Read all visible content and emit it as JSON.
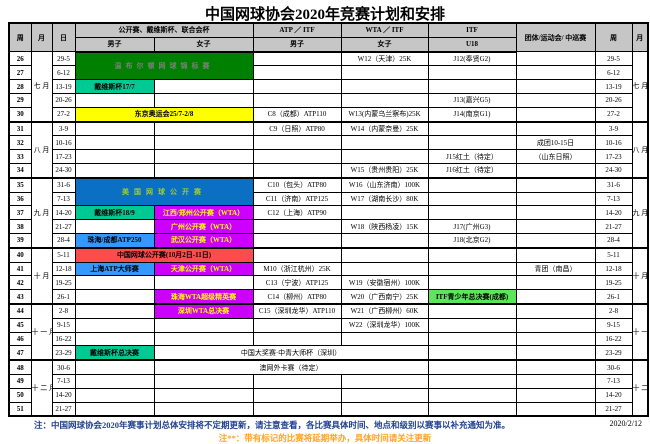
{
  "title": "中国网球协会2020年竞赛计划和安排",
  "header": {
    "week": "周",
    "month": "月",
    "day": "日",
    "open_group": "公开赛、戴维斯杯、联合会杯",
    "men": "男子",
    "women": "女子",
    "atp_itf": "ATP ／ ITF",
    "wta_itf": "WTA ／ ITF",
    "itf": "ITF",
    "u18": "U18",
    "team": "团体/运动会/ 中巡赛",
    "week_right": "周",
    "month_right": "月"
  },
  "colors": {
    "header_bg": "#c6c6c6",
    "green_dark": "#008000",
    "gray_on_green": "#7e7e7e",
    "teal": "#00c993",
    "yellow": "#ffff00",
    "blue_dark": "#0b6fc4",
    "yellowgreen": "#9acd32",
    "magenta": "#cc00ff",
    "blue": "#3399ff",
    "red": "#ff4b4b",
    "green_bright": "#5ce65c",
    "note_blue": "#1f3f8f",
    "note_orange": "#ffa321",
    "black": "#000000"
  },
  "notes": {
    "note1": "注：中国网球协会2020年赛事计划总体安排将不定期更新，请注意查看，各比赛具体时间、地点和级别以赛事以补充通知为准。",
    "date": "2020/2/12",
    "note2": "注**：带有标记的比赛将延期举办，具体时间请关注更新"
  },
  "rows": [
    {
      "cells": [
        {
          "t": "26",
          "cls": "wk"
        },
        {
          "t": "七月",
          "rs": 5,
          "cls": "mo",
          "v": 1
        },
        {
          "t": "29-5",
          "cls": "dt"
        },
        {
          "t": "温布尔顿网球锦标赛",
          "cs": 2,
          "rs": 2,
          "bg": "green_dark",
          "fg": "gray_on_green",
          "cls": "ev mid",
          "n": "event-wimbledon"
        },
        {},
        {
          "t": "W12（天津）25K"
        },
        {
          "t": "J12(奉贤G2)"
        },
        {},
        {
          "t": "29-5",
          "cls": "dtr"
        },
        {
          "t": "七月",
          "rs": 5,
          "cls": "mo",
          "v": 1
        }
      ]
    },
    {
      "cells": [
        {
          "t": "27",
          "cls": "wk"
        },
        {
          "t": "6-12",
          "cls": "dt"
        },
        {},
        {},
        {},
        {},
        {
          "t": "6-12",
          "cls": "dtr"
        }
      ]
    },
    {
      "cells": [
        {
          "t": "28",
          "cls": "wk"
        },
        {
          "t": "13-19",
          "cls": "dt"
        },
        {
          "t": "戴维斯杯17/7",
          "bg": "teal",
          "cls": "ev",
          "n": "event-davis-cup-17-7"
        },
        {},
        {},
        {},
        {},
        {},
        {
          "t": "13-19",
          "cls": "dtr"
        }
      ]
    },
    {
      "cells": [
        {
          "t": "29",
          "cls": "wk"
        },
        {
          "t": "20-26",
          "cls": "dt"
        },
        {},
        {},
        {},
        {},
        {
          "t": "J13(嘉兴G5)"
        },
        {},
        {
          "t": "20-26",
          "cls": "dtr"
        }
      ]
    },
    {
      "cells": [
        {
          "t": "30",
          "cls": "wk"
        },
        {
          "t": "27-2",
          "cls": "dt"
        },
        {
          "t": "东京奥运会25/7-2/8",
          "cs": 2,
          "bg": "yellow",
          "cls": "ev",
          "n": "event-tokyo-olympics"
        },
        {
          "t": "C8（成都）ATP110"
        },
        {
          "t": "W13(内蒙乌兰察布)25K"
        },
        {
          "t": "J14(南京G1)"
        },
        {},
        {
          "t": "27-2",
          "cls": "dtr"
        }
      ]
    },
    {
      "ms": 1,
      "cells": [
        {
          "t": "31",
          "cls": "wk"
        },
        {
          "t": "八月",
          "rs": 4,
          "cls": "mo",
          "v": 1
        },
        {
          "t": "3-9",
          "cls": "dt"
        },
        {},
        {},
        {
          "t": "C9（日照）ATP80"
        },
        {
          "t": "W14（内蒙奈曼）25K"
        },
        {},
        {},
        {
          "t": "3-9",
          "cls": "dtr"
        },
        {
          "t": "八月",
          "rs": 4,
          "cls": "mo",
          "v": 1
        }
      ]
    },
    {
      "cells": [
        {
          "t": "32",
          "cls": "wk"
        },
        {
          "t": "10-16",
          "cls": "dt"
        },
        {},
        {},
        {},
        {},
        {},
        {
          "t": "成团10-15日"
        },
        {
          "t": "10-16",
          "cls": "dtr"
        }
      ]
    },
    {
      "cells": [
        {
          "t": "33",
          "cls": "wk"
        },
        {
          "t": "17-23",
          "cls": "dt"
        },
        {},
        {},
        {},
        {},
        {
          "t": "J15红土（待定）"
        },
        {
          "t": "（山东日照）"
        },
        {
          "t": "17-23",
          "cls": "dtr"
        }
      ]
    },
    {
      "cells": [
        {
          "t": "34",
          "cls": "wk"
        },
        {
          "t": "24-30",
          "cls": "dt"
        },
        {},
        {},
        {},
        {
          "t": "W15（贵州贵阳）25K"
        },
        {
          "t": "J16红土（待定）"
        },
        {},
        {
          "t": "24-30",
          "cls": "dtr"
        }
      ]
    },
    {
      "ms": 1,
      "cells": [
        {
          "t": "35",
          "cls": "wk"
        },
        {
          "t": "九月",
          "rs": 5,
          "cls": "mo",
          "v": 1
        },
        {
          "t": "31-6",
          "cls": "dt"
        },
        {
          "t": "美国网球公开赛",
          "cs": 2,
          "rs": 2,
          "bg": "blue_dark",
          "fg": "yellowgreen",
          "cls": "ev big",
          "n": "event-us-open"
        },
        {
          "t": "C10（包头）ATP80"
        },
        {
          "t": "W16（山东济南）100K"
        },
        {},
        {},
        {
          "t": "31-6",
          "cls": "dtr"
        },
        {
          "t": "九月",
          "rs": 5,
          "cls": "mo",
          "v": 1
        }
      ]
    },
    {
      "cells": [
        {
          "t": "36",
          "cls": "wk"
        },
        {
          "t": "7-13",
          "cls": "dt"
        },
        {
          "t": "C11（济南）ATP125"
        },
        {
          "t": "W17（湖南长沙）80K"
        },
        {},
        {},
        {
          "t": "7-13",
          "cls": "dtr"
        }
      ]
    },
    {
      "cells": [
        {
          "t": "37",
          "cls": "wk"
        },
        {
          "t": "14-20",
          "cls": "dt"
        },
        {
          "t": "戴维斯杯18/9",
          "bg": "teal",
          "cls": "ev",
          "n": "event-davis-cup-18-9"
        },
        {
          "t": "江西/郑州公开赛（WTA）",
          "bg": "magenta",
          "fg": "yellow",
          "cls": "ev",
          "n": "event-jiangxi-zhengzhou-open"
        },
        {
          "t": "C12（上海）ATP90"
        },
        {},
        {},
        {},
        {
          "t": "14-20",
          "cls": "dtr"
        }
      ]
    },
    {
      "cells": [
        {
          "t": "38",
          "cls": "wk"
        },
        {
          "t": "21-27",
          "cls": "dt"
        },
        {},
        {
          "t": "广州公开赛（WTA）",
          "bg": "magenta",
          "fg": "yellow",
          "cls": "ev",
          "n": "event-guangzhou-open"
        },
        {},
        {
          "t": "W18（陕西杨凌）15K"
        },
        {
          "t": "J17(广州G3)"
        },
        {},
        {
          "t": "21-27",
          "cls": "dtr"
        }
      ]
    },
    {
      "cells": [
        {
          "t": "39",
          "cls": "wk"
        },
        {
          "t": "28-4",
          "cls": "dt"
        },
        {
          "t": "珠海/成都ATP250",
          "bg": "blue",
          "cls": "ev",
          "n": "event-zhuhai-chengdu-atp250"
        },
        {
          "t": "武汉公开赛（WTA）",
          "bg": "magenta",
          "fg": "yellow",
          "cls": "ev",
          "n": "event-wuhan-open"
        },
        {},
        {},
        {
          "t": "J18(北京G2)"
        },
        {},
        {
          "t": "28-4",
          "cls": "dtr"
        }
      ]
    },
    {
      "ms": 1,
      "cells": [
        {
          "t": "40",
          "cls": "wk"
        },
        {
          "t": "十月",
          "rs": 4,
          "cls": "mo",
          "v": 1
        },
        {
          "t": "5-11",
          "cls": "dt"
        },
        {
          "t": "中国网球公开赛(10月2日-11日)",
          "cs": 2,
          "bg": "red",
          "cls": "ev",
          "n": "event-china-open"
        },
        {},
        {},
        {},
        {},
        {
          "t": "5-11",
          "cls": "dtr"
        },
        {
          "t": "十月",
          "rs": 4,
          "cls": "mo",
          "v": 1
        }
      ]
    },
    {
      "cells": [
        {
          "t": "41",
          "cls": "wk"
        },
        {
          "t": "12-18",
          "cls": "dt"
        },
        {
          "t": "上海ATP大师赛",
          "bg": "blue",
          "cls": "ev",
          "n": "event-shanghai-masters"
        },
        {
          "t": "天津公开赛（WTA）",
          "bg": "magenta",
          "fg": "yellow",
          "cls": "ev",
          "n": "event-tianjin-open"
        },
        {
          "t": "M10（浙江杭州）25K"
        },
        {},
        {},
        {
          "t": "青团（南昌）"
        },
        {
          "t": "12-18",
          "cls": "dtr"
        }
      ]
    },
    {
      "cells": [
        {
          "t": "42",
          "cls": "wk"
        },
        {
          "t": "19-25",
          "cls": "dt"
        },
        {},
        {},
        {
          "t": "C13（宁波）ATP125"
        },
        {
          "t": "W19（安徽宿州）100K"
        },
        {},
        {},
        {
          "t": "19-25",
          "cls": "dtr"
        }
      ]
    },
    {
      "cells": [
        {
          "t": "43",
          "cls": "wk"
        },
        {
          "t": "26-1",
          "cls": "dt"
        },
        {},
        {
          "t": "珠海WTA超级精英赛",
          "bg": "magenta",
          "fg": "yellow",
          "cls": "ev",
          "n": "event-zhuhai-wta-elite"
        },
        {
          "t": "C14（柳州）ATP80"
        },
        {
          "t": "W20（广西南宁）25K"
        },
        {
          "t": "ITF青少年总决赛(成都)",
          "bg": "green_bright",
          "cls": "ev",
          "n": "event-itf-junior-finals"
        },
        {},
        {
          "t": "26-1",
          "cls": "dtr"
        }
      ]
    },
    {
      "ms": 1,
      "cells": [
        {
          "t": "44",
          "cls": "wk"
        },
        {
          "t": "十一月",
          "rs": 4,
          "cls": "mo",
          "v": 1
        },
        {
          "t": "2-8",
          "cls": "dt"
        },
        {},
        {
          "t": "深圳WTA总决赛",
          "bg": "magenta",
          "fg": "yellow",
          "cls": "ev",
          "n": "event-shenzhen-wta-finals"
        },
        {
          "t": "C15（深圳龙华）ATP110"
        },
        {
          "t": "W21（广西柳州）60K"
        },
        {},
        {},
        {
          "t": "2-8",
          "cls": "dtr"
        },
        {
          "t": "十一月",
          "rs": 4,
          "cls": "mo",
          "v": 1
        }
      ]
    },
    {
      "cells": [
        {
          "t": "45",
          "cls": "wk"
        },
        {
          "t": "9-15",
          "cls": "dt"
        },
        {},
        {},
        {},
        {
          "t": "W22（深圳龙华）100K"
        },
        {},
        {},
        {
          "t": "9-15",
          "cls": "dtr"
        }
      ]
    },
    {
      "cells": [
        {
          "t": "46",
          "cls": "wk"
        },
        {
          "t": "16-22",
          "cls": "dt"
        },
        {},
        {},
        {},
        {},
        {},
        {},
        {
          "t": "16-22",
          "cls": "dtr"
        }
      ]
    },
    {
      "cells": [
        {
          "t": "47",
          "cls": "wk"
        },
        {
          "t": "23-29",
          "cls": "dt"
        },
        {
          "t": "戴维斯杯总决赛",
          "bg": "teal",
          "cls": "ev",
          "n": "event-davis-cup-finals"
        },
        {
          "t": "中国大奖赛·中青大师杯（深圳）",
          "cs": 3,
          "n": "event-china-grand-prix"
        },
        {},
        {},
        {
          "t": "23-29",
          "cls": "dtr"
        }
      ]
    },
    {
      "ms": 1,
      "cells": [
        {
          "t": "48",
          "cls": "wk"
        },
        {
          "t": "十二月",
          "rs": 4,
          "cls": "mo",
          "v": 1
        },
        {
          "t": "30-6",
          "cls": "dt"
        },
        {},
        {
          "t": "澳网外卡赛（待定）",
          "cs": 3,
          "n": "event-ao-wildcard"
        },
        {},
        {},
        {
          "t": "30-6",
          "cls": "dtr"
        },
        {
          "t": "十二月",
          "rs": 4,
          "cls": "mo",
          "v": 1
        }
      ]
    },
    {
      "cells": [
        {
          "t": "49",
          "cls": "wk"
        },
        {
          "t": "7-13",
          "cls": "dt"
        },
        {},
        {},
        {},
        {},
        {},
        {},
        {
          "t": "7-13",
          "cls": "dtr"
        }
      ]
    },
    {
      "cells": [
        {
          "t": "50",
          "cls": "wk"
        },
        {
          "t": "14-20",
          "cls": "dt"
        },
        {},
        {},
        {},
        {},
        {},
        {},
        {
          "t": "14-20",
          "cls": "dtr"
        }
      ]
    },
    {
      "cells": [
        {
          "t": "51",
          "cls": "wk"
        },
        {
          "t": "21-27",
          "cls": "dt"
        },
        {},
        {},
        {},
        {},
        {},
        {},
        {
          "t": "21-27",
          "cls": "dtr"
        }
      ]
    }
  ]
}
